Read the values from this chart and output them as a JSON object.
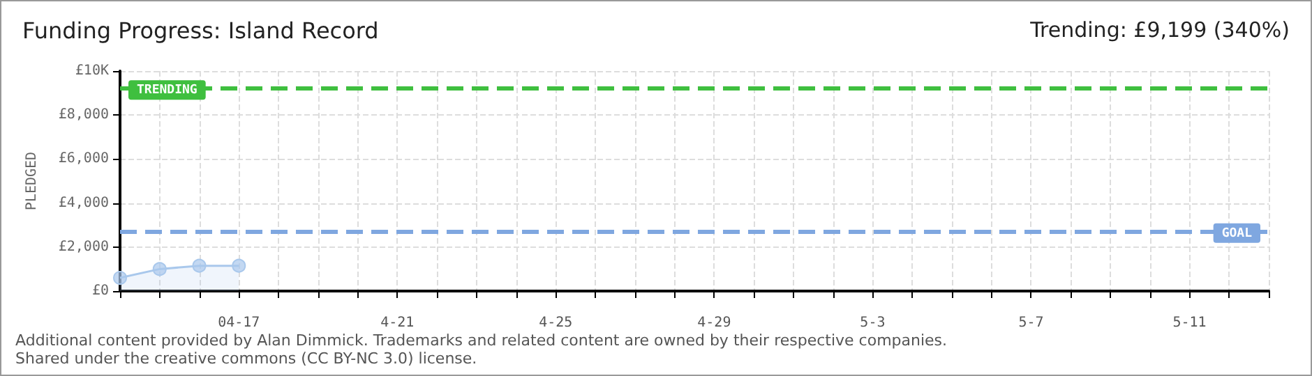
{
  "chart_data": {
    "type": "area",
    "title": "Funding Progress: Island Record",
    "subtitle": "Trending: £9,199 (340%)",
    "ylabel": "PLEDGED",
    "annotations": [
      "Additional content provided by Alan Dimmick. Trademarks and related content are owned by their respective companies.",
      "Shared under the creative commons (CC BY-NC 3.0) license."
    ],
    "x": [
      "--04-14",
      "--04-15",
      "--04-16",
      "--04-17"
    ],
    "series": [
      {
        "color": "#a9c8ec",
        "values": [
          600,
          1000,
          1150,
          1150
        ]
      }
    ],
    "xlim": [
      "--04-14",
      "--05-13"
    ],
    "xticks": [
      {
        "value": "--04-14",
        "label": null
      },
      {
        "value": "--04-15",
        "label": null
      },
      {
        "value": "--04-16",
        "label": null
      },
      {
        "value": "--04-17",
        "label": "04-17"
      },
      {
        "value": "--04-18",
        "label": null
      },
      {
        "value": "--04-19",
        "label": null
      },
      {
        "value": "--04-20",
        "label": null
      },
      {
        "value": "--04-21",
        "label": "4-21"
      },
      {
        "value": "--04-22",
        "label": null
      },
      {
        "value": "--04-23",
        "label": null
      },
      {
        "value": "--04-24",
        "label": null
      },
      {
        "value": "--04-25",
        "label": "4-25"
      },
      {
        "value": "--04-26",
        "label": null
      },
      {
        "value": "--04-27",
        "label": null
      },
      {
        "value": "--04-28",
        "label": null
      },
      {
        "value": "--04-29",
        "label": "4-29"
      },
      {
        "value": "--04-30",
        "label": null
      },
      {
        "value": "--05-01",
        "label": null
      },
      {
        "value": "--05-02",
        "label": null
      },
      {
        "value": "--05-03",
        "label": "5-3"
      },
      {
        "value": "--05-04",
        "label": null
      },
      {
        "value": "--05-05",
        "label": null
      },
      {
        "value": "--05-06",
        "label": null
      },
      {
        "value": "--05-07",
        "label": "5-7"
      },
      {
        "value": "--05-08",
        "label": null
      },
      {
        "value": "--05-09",
        "label": null
      },
      {
        "value": "--05-10",
        "label": null
      },
      {
        "value": "--05-11",
        "label": "5-11"
      },
      {
        "value": "--05-12",
        "label": null
      },
      {
        "value": "--05-13",
        "label": null
      }
    ],
    "ylim": [
      0,
      10000
    ],
    "yticks": [
      {
        "value": 0,
        "label": "£0"
      },
      {
        "value": 2000,
        "label": "£2,000"
      },
      {
        "value": 4000,
        "label": "£4,000"
      },
      {
        "value": 6000,
        "label": "£6,000"
      },
      {
        "value": 8000,
        "label": "£8,000"
      },
      {
        "value": 10000,
        "label": "£10K"
      }
    ],
    "ref_lines": [
      {
        "axis": "y",
        "value": 9199,
        "label": "TRENDING",
        "color": "#3fbf3f",
        "line_style": "dashed"
      },
      {
        "axis": "y",
        "value": 2700,
        "label": "GOAL",
        "color": "#7fa7e0",
        "line_style": "dashed"
      }
    ],
    "grid": true,
    "marker": "circle",
    "line_style": "solid"
  }
}
